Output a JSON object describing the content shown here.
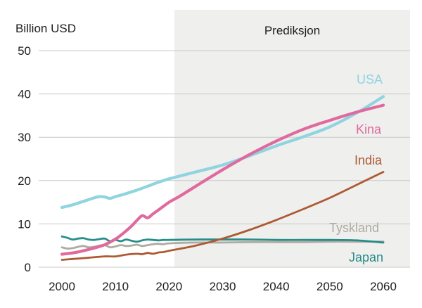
{
  "chart_data": {
    "type": "line",
    "title": "Billion USD",
    "prediction_label": "Prediksjon",
    "prediction_start": 2021,
    "grid": true,
    "xlim": [
      2000,
      2060
    ],
    "ylim": [
      0,
      50
    ],
    "x_ticks": [
      "2000",
      "2010",
      "2020",
      "2030",
      "2040",
      "2050",
      "2060"
    ],
    "y_ticks": [
      0,
      10,
      20,
      30,
      40,
      50
    ],
    "colors": {
      "grid": "#c8c8c7",
      "prediction_bg": "#efefee",
      "text": "#1d1d1b"
    },
    "series": [
      {
        "name": "USA",
        "color": "#8fd4df",
        "width": 4.2,
        "x": [
          2000,
          2002,
          2004,
          2006,
          2007,
          2008,
          2009,
          2010,
          2012,
          2014,
          2016,
          2018,
          2020,
          2025,
          2030,
          2035,
          2040,
          2045,
          2050,
          2055,
          2060
        ],
        "values": [
          13.8,
          14.4,
          15.2,
          16.0,
          16.3,
          16.2,
          15.9,
          16.3,
          17.0,
          17.8,
          18.7,
          19.6,
          20.4,
          22.0,
          23.6,
          25.7,
          28.0,
          30.1,
          32.4,
          35.6,
          39.4
        ]
      },
      {
        "name": "Kina",
        "color": "#e0699d",
        "width": 4.2,
        "x": [
          2000,
          2002,
          2004,
          2006,
          2008,
          2010,
          2011,
          2012,
          2013,
          2014,
          2015,
          2016,
          2017,
          2018,
          2019,
          2020,
          2022,
          2025,
          2030,
          2035,
          2040,
          2045,
          2050,
          2055,
          2060
        ],
        "values": [
          3.0,
          3.3,
          3.8,
          4.4,
          5.2,
          6.5,
          7.4,
          8.4,
          9.5,
          10.8,
          11.9,
          11.4,
          12.3,
          13.2,
          14.1,
          15.0,
          16.4,
          18.7,
          22.5,
          26.0,
          29.1,
          31.8,
          33.9,
          35.8,
          37.4
        ]
      },
      {
        "name": "India",
        "color": "#ad5a33",
        "width": 2.8,
        "x": [
          2000,
          2002,
          2004,
          2006,
          2008,
          2010,
          2012,
          2014,
          2015,
          2016,
          2017,
          2018,
          2019,
          2020,
          2025,
          2030,
          2035,
          2040,
          2045,
          2050,
          2055,
          2060
        ],
        "values": [
          1.7,
          1.9,
          2.1,
          2.3,
          2.5,
          2.5,
          2.9,
          3.1,
          3.0,
          3.3,
          3.1,
          3.4,
          3.5,
          3.8,
          5.0,
          6.6,
          8.6,
          10.9,
          13.4,
          16.0,
          19.0,
          22.0
        ]
      },
      {
        "name": "Tyskland",
        "color": "#aeaba0",
        "width": 2.8,
        "x": [
          2000,
          2001,
          2002,
          2003,
          2004,
          2005,
          2006,
          2007,
          2008,
          2009,
          2010,
          2011,
          2012,
          2013,
          2014,
          2015,
          2016,
          2017,
          2018,
          2019,
          2020,
          2025,
          2030,
          2035,
          2040,
          2045,
          2050,
          2055,
          2060
        ],
        "values": [
          4.6,
          4.3,
          4.4,
          4.7,
          4.9,
          4.6,
          4.7,
          5.0,
          5.1,
          4.6,
          4.8,
          5.1,
          4.9,
          5.0,
          5.2,
          4.9,
          5.1,
          5.3,
          5.4,
          5.3,
          5.5,
          5.7,
          5.7,
          5.8,
          5.8,
          5.8,
          5.9,
          5.9,
          5.9
        ]
      },
      {
        "name": "Japan",
        "color": "#288d89",
        "width": 2.8,
        "x": [
          2000,
          2001,
          2002,
          2003,
          2004,
          2005,
          2006,
          2007,
          2008,
          2009,
          2010,
          2011,
          2012,
          2013,
          2014,
          2015,
          2016,
          2017,
          2018,
          2019,
          2020,
          2025,
          2030,
          2035,
          2040,
          2045,
          2050,
          2055,
          2060
        ],
        "values": [
          7.1,
          6.8,
          6.4,
          6.6,
          6.7,
          6.4,
          6.3,
          6.5,
          6.6,
          6.0,
          6.3,
          6.0,
          6.4,
          6.1,
          5.9,
          6.2,
          6.4,
          6.3,
          6.2,
          6.3,
          6.3,
          6.4,
          6.4,
          6.4,
          6.3,
          6.3,
          6.3,
          6.2,
          5.7
        ]
      }
    ]
  }
}
